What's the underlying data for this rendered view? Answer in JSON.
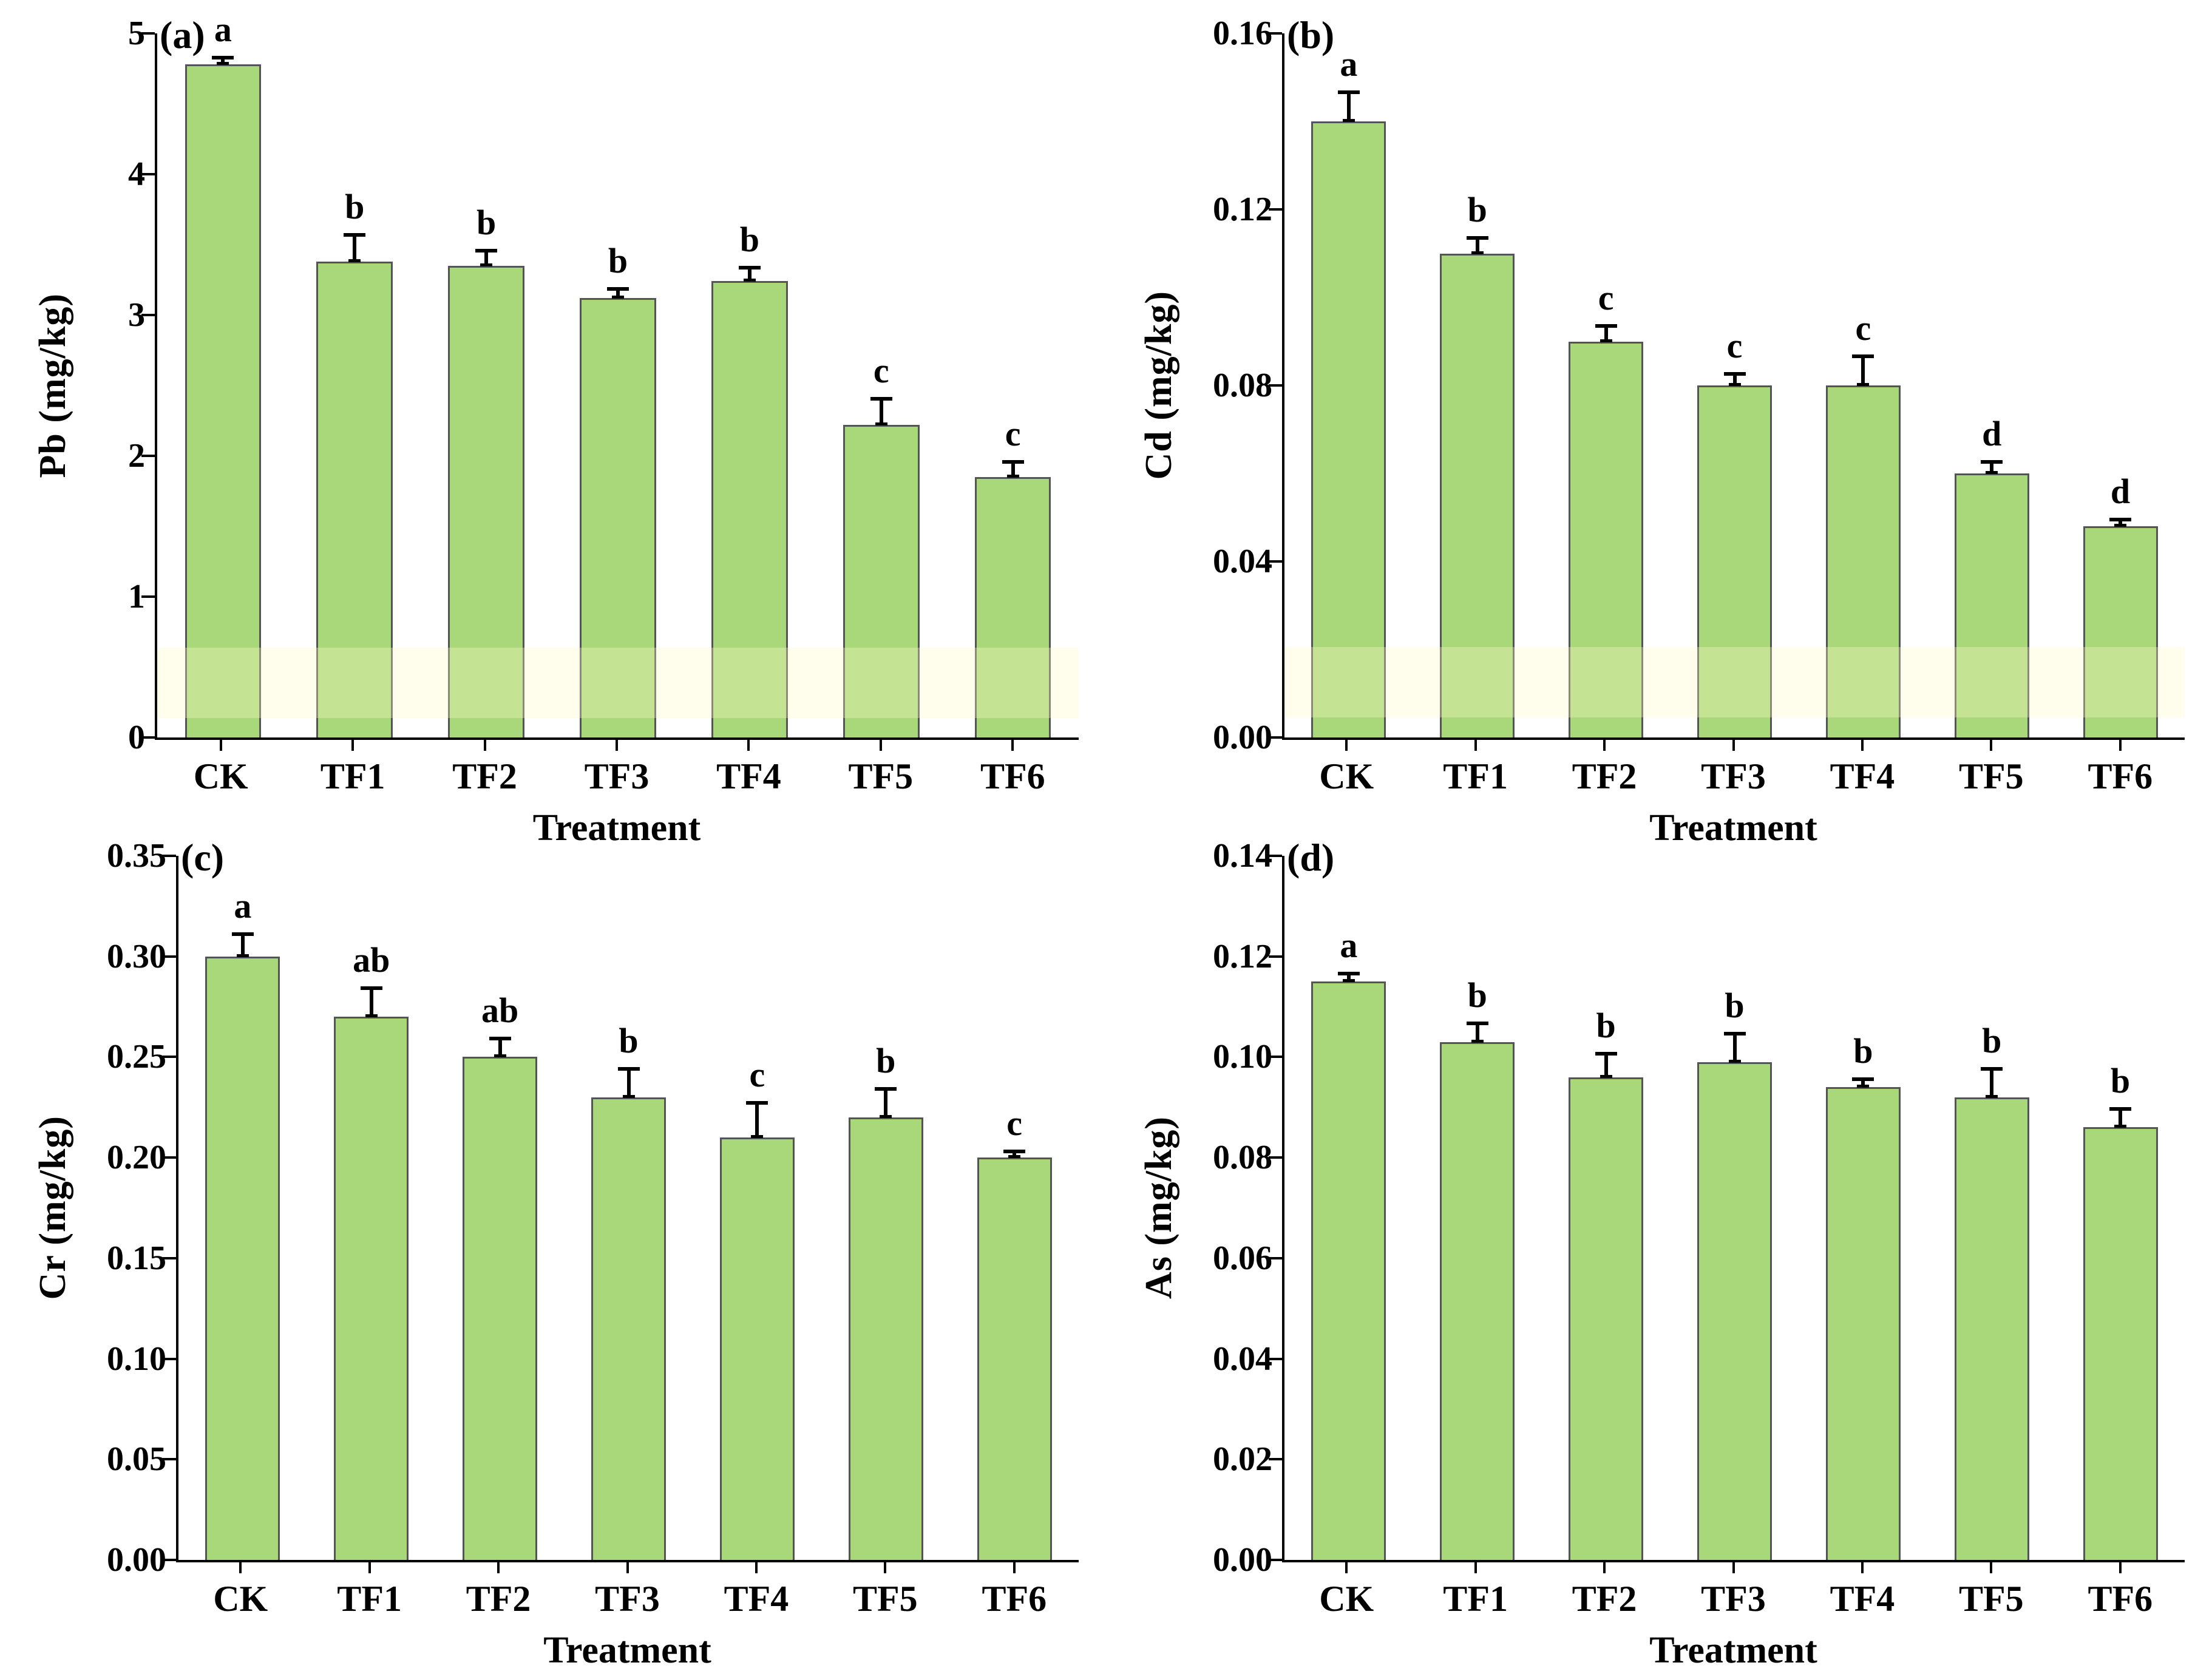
{
  "page": {
    "background": "#ffffff"
  },
  "figure": {
    "categories": [
      "CK",
      "TF1",
      "TF2",
      "TF3",
      "TF4",
      "TF5",
      "TF6"
    ],
    "bar_fill": "#a9d87b",
    "bar_edge": "#545454",
    "axis_color": "#000000",
    "error_bar_color": "#000000"
  },
  "chart_data": [
    {
      "type": "bar",
      "panel_label": "(a)",
      "ylabel": "Pb (mg/kg)",
      "xlabel": "Treatment",
      "categories": [
        "CK",
        "TF1",
        "TF2",
        "TF3",
        "TF4",
        "TF5",
        "TF6"
      ],
      "values": [
        4.78,
        3.38,
        3.35,
        3.12,
        3.24,
        2.22,
        1.85
      ],
      "errors_plus": [
        0.06,
        0.2,
        0.12,
        0.08,
        0.11,
        0.2,
        0.12
      ],
      "sig_letters": [
        "a",
        "b",
        "b",
        "b",
        "b",
        "c",
        "c"
      ],
      "ylim": [
        0,
        5
      ],
      "yticks": [
        0,
        1,
        2,
        3,
        4,
        5
      ],
      "ytick_labels": [
        "0",
        "1",
        "2",
        "3",
        "4",
        "5"
      ],
      "highlight_band": {
        "from": 0.14,
        "to": 0.64
      },
      "grid": false,
      "legend": null
    },
    {
      "type": "bar",
      "panel_label": "(b)",
      "ylabel": "Cd (mg/kg)",
      "xlabel": "Treatment",
      "categories": [
        "CK",
        "TF1",
        "TF2",
        "TF3",
        "TF4",
        "TF5",
        "TF6"
      ],
      "values": [
        0.14,
        0.11,
        0.09,
        0.08,
        0.08,
        0.06,
        0.048
      ],
      "errors_plus": [
        0.007,
        0.004,
        0.004,
        0.003,
        0.007,
        0.003,
        0.002
      ],
      "sig_letters": [
        "a",
        "b",
        "c",
        "c",
        "c",
        "d",
        "d"
      ],
      "ylim": [
        0,
        0.16
      ],
      "yticks": [
        0,
        0.04,
        0.08,
        0.12,
        0.16
      ],
      "ytick_labels": [
        "0.00",
        "0.04",
        "0.08",
        "0.12",
        "0.16"
      ],
      "highlight_band": {
        "from": 0.0045,
        "to": 0.0205
      },
      "grid": false,
      "legend": null
    },
    {
      "type": "bar",
      "panel_label": "(c)",
      "ylabel": "Cr (mg/kg)",
      "xlabel": "Treatment",
      "categories": [
        "CK",
        "TF1",
        "TF2",
        "TF3",
        "TF4",
        "TF5",
        "TF6"
      ],
      "values": [
        0.3,
        0.27,
        0.25,
        0.23,
        0.21,
        0.22,
        0.2
      ],
      "errors_plus": [
        0.012,
        0.015,
        0.01,
        0.015,
        0.018,
        0.015,
        0.004
      ],
      "sig_letters": [
        "a",
        "ab",
        "ab",
        "b",
        "c",
        "b",
        "c"
      ],
      "ylim": [
        0,
        0.35
      ],
      "yticks": [
        0,
        0.05,
        0.1,
        0.15,
        0.2,
        0.25,
        0.3,
        0.35
      ],
      "ytick_labels": [
        "0.00",
        "0.05",
        "0.10",
        "0.15",
        "0.20",
        "0.25",
        "0.30",
        "0.35"
      ],
      "highlight_band": null,
      "grid": false,
      "legend": null
    },
    {
      "type": "bar",
      "panel_label": "(d)",
      "ylabel": "As (mg/kg)",
      "xlabel": "Treatment",
      "categories": [
        "CK",
        "TF1",
        "TF2",
        "TF3",
        "TF4",
        "TF5",
        "TF6"
      ],
      "values": [
        0.115,
        0.103,
        0.096,
        0.099,
        0.094,
        0.092,
        0.086
      ],
      "errors_plus": [
        0.002,
        0.004,
        0.005,
        0.006,
        0.002,
        0.006,
        0.004
      ],
      "sig_letters": [
        "a",
        "b",
        "b",
        "b",
        "b",
        "b",
        "b"
      ],
      "ylim": [
        0,
        0.14
      ],
      "yticks": [
        0,
        0.02,
        0.04,
        0.06,
        0.08,
        0.1,
        0.12,
        0.14
      ],
      "ytick_labels": [
        "0.00",
        "0.02",
        "0.04",
        "0.06",
        "0.08",
        "0.10",
        "0.12",
        "0.14"
      ],
      "highlight_band": null,
      "grid": false,
      "legend": null
    }
  ]
}
